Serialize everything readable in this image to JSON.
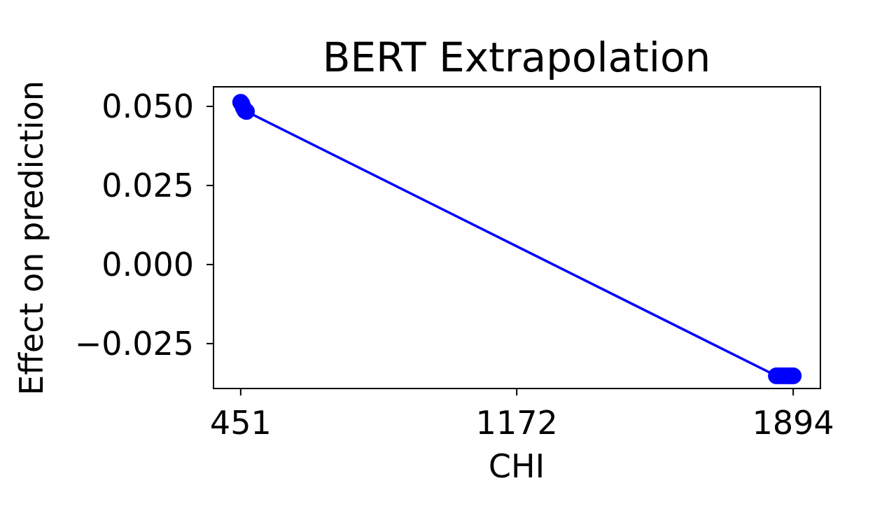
{
  "chart_data": {
    "type": "line",
    "title": "BERT Extrapolation",
    "xlabel": "CHI",
    "ylabel": "Effect on prediction",
    "x_ticks": [
      451,
      1172,
      1894
    ],
    "x_tick_labels": [
      "451",
      "1172",
      "1894"
    ],
    "y_ticks": [
      0.05,
      0.025,
      0.0,
      -0.025
    ],
    "y_tick_labels": [
      "0.050",
      "0.025",
      "0.000",
      "−0.025"
    ],
    "xlim": [
      380,
      1965
    ],
    "ylim": [
      -0.0392,
      0.0562
    ],
    "grid": false,
    "legend": "none",
    "series": [
      {
        "color": "#0000ff",
        "x": [
          451,
          454,
          458,
          462,
          466,
          1850,
          1858,
          1866,
          1874,
          1882,
          1888,
          1894
        ],
        "y": [
          0.0513,
          0.0508,
          0.0496,
          0.0487,
          0.0484,
          -0.0352,
          -0.0352,
          -0.0352,
          -0.0352,
          -0.0352,
          -0.0352,
          -0.0352
        ]
      }
    ]
  }
}
